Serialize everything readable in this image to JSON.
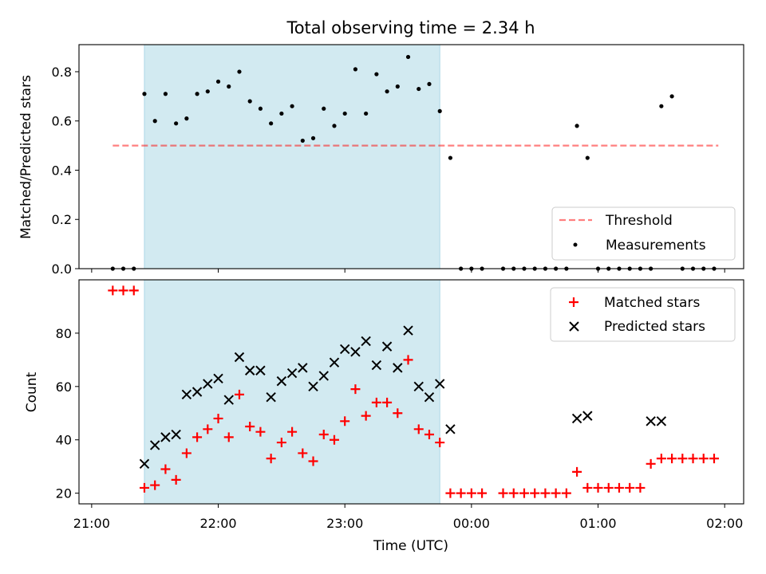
{
  "title": "Total observing time = 2.34 h",
  "colors": {
    "shade": "#add8e6",
    "threshold": "#ff0000",
    "matched": "#ff0000",
    "predicted": "#000000",
    "measurement": "#000000"
  },
  "chart_data": [
    {
      "type": "scatter",
      "panel": "top",
      "title": "Total observing time = 2.34 h",
      "xlabel": "",
      "ylabel": "Matched/Predicted stars",
      "x_unit": "time (UTC), hours after 21:00",
      "xlim": [
        "20:54",
        "02:09"
      ],
      "ylim": [
        0,
        0.91
      ],
      "yticks": [
        0.0,
        0.2,
        0.4,
        0.6,
        0.8
      ],
      "ytick_labels": [
        "0.0",
        "0.2",
        "0.4",
        "0.6",
        "0.8"
      ],
      "shaded_span": [
        "21:25",
        "23:45"
      ],
      "threshold": {
        "name": "Threshold",
        "value": 0.5,
        "x_range": [
          "21:10",
          "01:57"
        ],
        "style": "dashed"
      },
      "series": [
        {
          "name": "Measurements",
          "marker": "dot",
          "x": [
            "21:10",
            "21:15",
            "21:20",
            "21:25",
            "21:30",
            "21:35",
            "21:40",
            "21:45",
            "21:50",
            "21:55",
            "22:00",
            "22:05",
            "22:10",
            "22:15",
            "22:20",
            "22:25",
            "22:30",
            "22:35",
            "22:40",
            "22:45",
            "22:50",
            "22:55",
            "23:00",
            "23:05",
            "23:10",
            "23:15",
            "23:20",
            "23:25",
            "23:30",
            "23:35",
            "23:40",
            "23:45",
            "23:50",
            "23:55",
            "00:00",
            "00:05",
            "00:15",
            "00:20",
            "00:25",
            "00:30",
            "00:35",
            "00:40",
            "00:45",
            "00:50",
            "00:55",
            "01:00",
            "01:05",
            "01:10",
            "01:15",
            "01:20",
            "01:25",
            "01:30",
            "01:35",
            "01:40",
            "01:45",
            "01:50",
            "01:55"
          ],
          "y": [
            0,
            0,
            0,
            0.71,
            0.6,
            0.71,
            0.59,
            0.61,
            0.71,
            0.72,
            0.76,
            0.74,
            0.8,
            0.68,
            0.65,
            0.59,
            0.63,
            0.66,
            0.52,
            0.53,
            0.65,
            0.58,
            0.63,
            0.81,
            0.63,
            0.79,
            0.72,
            0.74,
            0.86,
            0.73,
            0.75,
            0.64,
            0.45,
            0,
            0,
            0,
            0,
            0,
            0,
            0,
            0,
            0,
            0,
            0.58,
            0.45,
            0,
            0,
            0,
            0,
            0,
            0,
            0.66,
            0.7,
            0,
            0,
            0,
            0
          ]
        }
      ],
      "legend": {
        "position": "lower-right",
        "entries": [
          "Threshold",
          "Measurements"
        ]
      }
    },
    {
      "type": "scatter",
      "panel": "bottom",
      "xlabel": "Time (UTC)",
      "ylabel": "Count",
      "xlim": [
        "20:54",
        "02:09"
      ],
      "ylim": [
        16,
        100
      ],
      "yticks": [
        20,
        40,
        60,
        80
      ],
      "xtick_labels": [
        "21:00",
        "22:00",
        "23:00",
        "00:00",
        "01:00",
        "02:00"
      ],
      "shaded_span": [
        "21:25",
        "23:45"
      ],
      "series": [
        {
          "name": "Matched stars",
          "marker": "plus",
          "x": [
            "21:10",
            "21:15",
            "21:20",
            "21:25",
            "21:30",
            "21:35",
            "21:40",
            "21:45",
            "21:50",
            "21:55",
            "22:00",
            "22:05",
            "22:10",
            "22:15",
            "22:20",
            "22:25",
            "22:30",
            "22:35",
            "22:40",
            "22:45",
            "22:50",
            "22:55",
            "23:00",
            "23:05",
            "23:10",
            "23:15",
            "23:20",
            "23:25",
            "23:30",
            "23:35",
            "23:40",
            "23:45",
            "23:50",
            "23:55",
            "00:00",
            "00:05",
            "00:15",
            "00:20",
            "00:25",
            "00:30",
            "00:35",
            "00:40",
            "00:45",
            "00:50",
            "00:55",
            "01:00",
            "01:05",
            "01:10",
            "01:15",
            "01:20",
            "01:25",
            "01:30",
            "01:35",
            "01:40",
            "01:45",
            "01:50",
            "01:55"
          ],
          "y": [
            96,
            96,
            96,
            22,
            23,
            29,
            25,
            35,
            41,
            44,
            48,
            41,
            57,
            45,
            43,
            33,
            39,
            43,
            35,
            32,
            42,
            40,
            47,
            59,
            49,
            54,
            54,
            50,
            70,
            44,
            42,
            39,
            20,
            20,
            20,
            20,
            20,
            20,
            20,
            20,
            20,
            20,
            20,
            28,
            22,
            22,
            22,
            22,
            22,
            22,
            31,
            33,
            33,
            33,
            33,
            33,
            33
          ]
        },
        {
          "name": "Predicted stars",
          "marker": "x",
          "x": [
            "21:25",
            "21:30",
            "21:35",
            "21:40",
            "21:45",
            "21:50",
            "21:55",
            "22:00",
            "22:05",
            "22:10",
            "22:15",
            "22:20",
            "22:25",
            "22:30",
            "22:35",
            "22:40",
            "22:45",
            "22:50",
            "22:55",
            "23:00",
            "23:05",
            "23:10",
            "23:15",
            "23:20",
            "23:25",
            "23:30",
            "23:35",
            "23:40",
            "23:45",
            "23:50",
            "00:50",
            "00:55",
            "01:25",
            "01:30"
          ],
          "y": [
            31,
            38,
            41,
            42,
            57,
            58,
            61,
            63,
            55,
            71,
            66,
            66,
            56,
            62,
            65,
            67,
            60,
            64,
            69,
            74,
            73,
            77,
            68,
            75,
            67,
            81,
            60,
            56,
            61,
            44,
            48,
            49,
            47,
            47
          ]
        }
      ],
      "legend": {
        "position": "upper-right",
        "entries": [
          "Matched stars",
          "Predicted stars"
        ]
      }
    }
  ]
}
